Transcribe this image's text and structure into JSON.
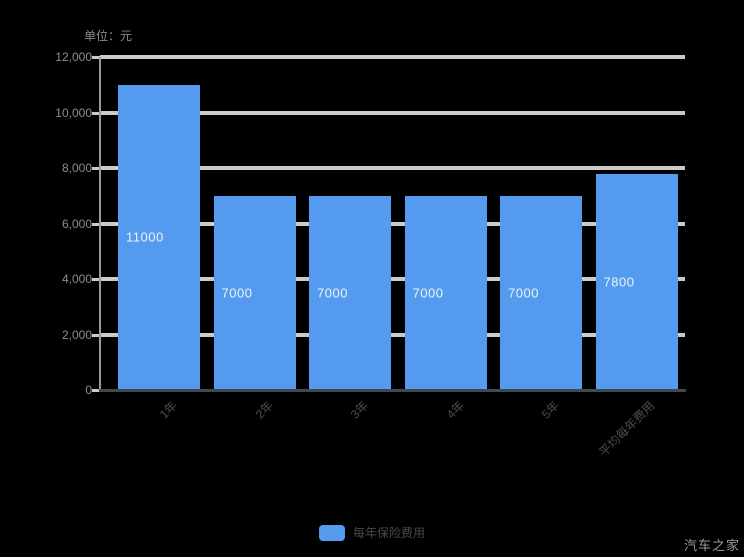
{
  "unit_label": "单位：元",
  "watermark": "汽车之家",
  "legend": {
    "label": "每年保险费用"
  },
  "colors": {
    "background": "#000000",
    "bar_fill": "#549BF0",
    "bar_label_text": "#EDF2F9",
    "gridline": "#CBCBCB",
    "y_axis_line": "#9A9A9A",
    "x_axis_line": "#3E4853",
    "y_tick_label_text": "#8C8C8C",
    "x_cat_label_text": "#4D4D4D",
    "legend_text": "#4A4A4A",
    "watermark_text": "#9A9A9A"
  },
  "chart_data": {
    "type": "bar",
    "title": "",
    "xlabel": "",
    "ylabel": "单位：元",
    "categories": [
      "1年",
      "2年",
      "3年",
      "4年",
      "5年",
      "平均每年费用"
    ],
    "values": [
      11000,
      7000,
      7000,
      7000,
      7000,
      7800
    ],
    "bar_labels": [
      "11000",
      "7000",
      "7000",
      "7000",
      "7000",
      "7800"
    ],
    "ylim": [
      0,
      12000
    ],
    "yticks": [
      {
        "value": 0,
        "label": "0"
      },
      {
        "value": 2000,
        "label": "2,000"
      },
      {
        "value": 4000,
        "label": "4,000"
      },
      {
        "value": 6000,
        "label": "6,000"
      },
      {
        "value": 8000,
        "label": "8,000"
      },
      {
        "value": 10000,
        "label": "10,000"
      },
      {
        "value": 12000,
        "label": "12,000"
      }
    ],
    "grid": true,
    "legend_entries": [
      "每年保险费用"
    ],
    "legend_position": "bottom"
  }
}
